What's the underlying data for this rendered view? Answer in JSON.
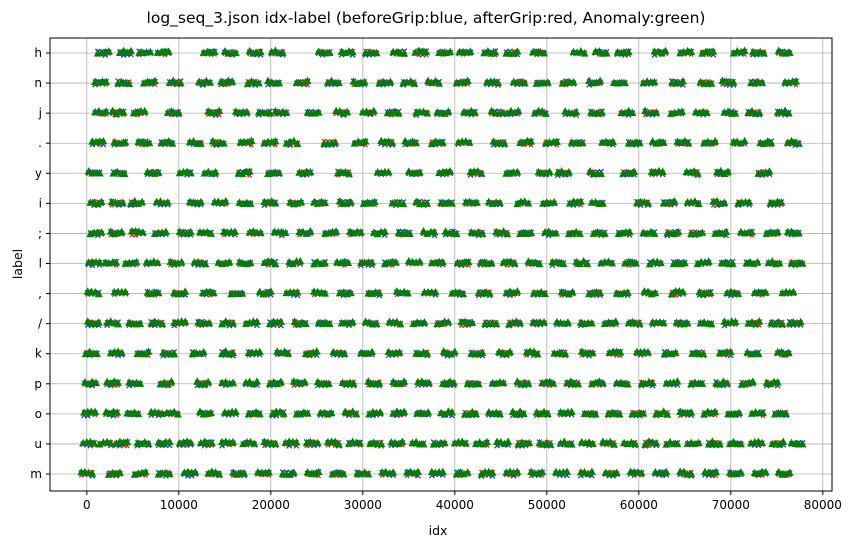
{
  "chart_data": {
    "type": "scatter",
    "title": "log_seq_3.json idx-label (beforeGrip:blue, afterGrip:red, Anomaly:green)",
    "xlabel": "idx",
    "ylabel": "label",
    "xlim": [
      -4000,
      81000
    ],
    "x_ticks": [
      0,
      10000,
      20000,
      30000,
      40000,
      50000,
      60000,
      70000,
      80000
    ],
    "x_tick_labels": [
      "0",
      "10000",
      "20000",
      "30000",
      "40000",
      "50000",
      "60000",
      "70000",
      "80000"
    ],
    "categories": [
      "m",
      "u",
      "o",
      "p",
      "k",
      "/",
      ",",
      "l",
      ";",
      "i",
      "y",
      ".",
      "j",
      "n",
      "h"
    ],
    "grid": true,
    "colors": {
      "beforeGrip": "#1f3fbf",
      "afterGrip": "#d62728",
      "Anomaly": "#008000"
    },
    "series": [
      {
        "name": "beforeGrip",
        "color": "#1f3fbf",
        "marker": "x",
        "clusters": {
          "h": [
            1800,
            4200,
            6300,
            8300,
            13300,
            15600,
            18300,
            20700,
            25800,
            28300,
            30900,
            33900,
            36300,
            38900,
            41100,
            43800,
            46200,
            49100,
            53500,
            55900,
            58300,
            62300,
            65100,
            67500,
            70900,
            73000,
            75800
          ],
          "n": [
            1500,
            4000,
            6800,
            9600,
            12800,
            15200,
            18100,
            20300,
            23400,
            26800,
            29600,
            32400,
            35000,
            37700,
            40800,
            44100,
            47000,
            49500,
            52300,
            55200,
            57900,
            61100,
            64200,
            67300,
            69700,
            72800,
            76500
          ],
          "j": [
            1500,
            3400,
            5700,
            9400,
            13800,
            16800,
            19300,
            21100,
            24600,
            27700,
            30600,
            33300,
            36400,
            38700,
            41600,
            44600,
            46300,
            49300,
            52600,
            55400,
            58700,
            61300,
            64100,
            66800,
            69900,
            72500,
            75700
          ],
          ".": [
            1200,
            3600,
            6200,
            8700,
            11800,
            14300,
            17300,
            19900,
            22300,
            26400,
            29700,
            32600,
            35200,
            38100,
            41000,
            44800,
            47700,
            50500,
            53300,
            56600,
            59500,
            62100,
            64800,
            67700,
            70900,
            73800,
            76800
          ],
          "y": [
            800,
            3500,
            7200,
            10700,
            13400,
            17100,
            20300,
            23700,
            27900,
            32200,
            35600,
            38900,
            42300,
            46200,
            49700,
            51800,
            55300,
            58900,
            62000,
            65800,
            69100,
            73600
          ],
          "i": [
            1000,
            3300,
            5400,
            8200,
            11800,
            14500,
            17200,
            19900,
            22700,
            25300,
            28100,
            30700,
            33800,
            36400,
            39100,
            41800,
            44300,
            47400,
            50200,
            53100,
            55500,
            60400,
            63300,
            65900,
            68700,
            71400,
            74900
          ],
          ";": [
            1000,
            3200,
            5500,
            8000,
            10700,
            12900,
            15500,
            18300,
            21000,
            23700,
            26500,
            29200,
            31800,
            34500,
            37200,
            39600,
            42400,
            45100,
            47700,
            50400,
            53000,
            55700,
            58400,
            61100,
            63700,
            66300,
            68900,
            71700,
            74500,
            76800
          ],
          "l": [
            800,
            2600,
            4800,
            7100,
            9700,
            12300,
            14900,
            17200,
            19900,
            22600,
            25300,
            27800,
            30400,
            33000,
            35600,
            38100,
            40900,
            43400,
            45900,
            48600,
            51200,
            53800,
            56500,
            59100,
            61800,
            64400,
            67000,
            69600,
            72300,
            74700,
            77200
          ],
          ",": [
            700,
            3600,
            7200,
            10100,
            13200,
            16300,
            19400,
            22300,
            25300,
            28100,
            31200,
            34300,
            37300,
            40300,
            43200,
            46200,
            49200,
            52200,
            55200,
            58200,
            61200,
            64200,
            67200,
            70200,
            73200,
            76200
          ],
          "/": [
            700,
            2800,
            5200,
            7600,
            10100,
            12700,
            15300,
            17900,
            20500,
            23200,
            25800,
            28300,
            30900,
            33500,
            36100,
            38700,
            41300,
            43900,
            46500,
            49100,
            51700,
            54300,
            56900,
            59500,
            62100,
            64700,
            67300,
            69900,
            72500,
            75000,
            77000
          ],
          "k": [
            500,
            3200,
            6100,
            8900,
            12100,
            15300,
            18200,
            21300,
            24400,
            27400,
            30400,
            33400,
            36400,
            39400,
            42400,
            45400,
            48400,
            51400,
            54400,
            57400,
            60400,
            63400,
            66400,
            69400,
            72400,
            75700
          ],
          "p": [
            400,
            2800,
            5200,
            8600,
            12600,
            15300,
            17900,
            20500,
            23100,
            25700,
            28400,
            31200,
            33900,
            36600,
            39300,
            42000,
            44700,
            47400,
            50100,
            52800,
            55500,
            58200,
            60900,
            63600,
            66300,
            69000,
            71800,
            74500
          ],
          "o": [
            300,
            2700,
            5000,
            7600,
            9300,
            12900,
            15600,
            18200,
            20800,
            23400,
            26000,
            28700,
            31300,
            33900,
            36500,
            39100,
            41700,
            44300,
            46900,
            49500,
            52100,
            54700,
            57300,
            59900,
            62500,
            65100,
            67700,
            70300,
            72900,
            75400
          ],
          "u": [
            200,
            2000,
            3800,
            6100,
            8400,
            10700,
            13000,
            15300,
            17600,
            19900,
            22200,
            24500,
            26800,
            29100,
            31400,
            33700,
            36000,
            38300,
            40600,
            42900,
            45200,
            47500,
            49800,
            52100,
            54400,
            56700,
            59000,
            61300,
            63600,
            65900,
            68200,
            70500,
            72800,
            75100,
            77200
          ],
          "m": [
            0,
            3000,
            5800,
            8400,
            11200,
            13800,
            16500,
            19200,
            21900,
            24600,
            27300,
            30000,
            32700,
            35400,
            38100,
            40800,
            43500,
            46200,
            48900,
            51600,
            54300,
            57000,
            59700,
            62400,
            65100,
            67800,
            70500,
            73200,
            75800
          ]
        }
      },
      {
        "name": "afterGrip",
        "color": "#d62728",
        "marker": "x"
      },
      {
        "name": "Anomaly",
        "color": "#008000",
        "marker": "^"
      }
    ]
  }
}
